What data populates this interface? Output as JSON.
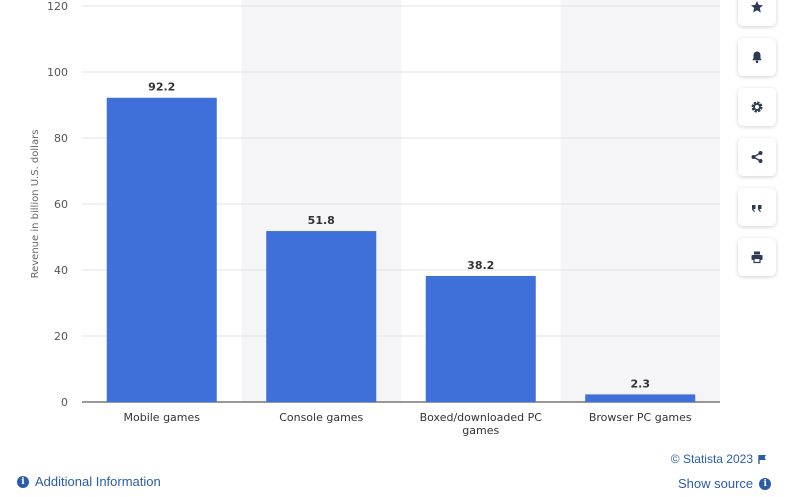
{
  "chart_data": {
    "type": "bar",
    "categories": [
      "Mobile games",
      "Console games",
      "Boxed/downloaded PC games",
      "Browser PC games"
    ],
    "values": [
      92.2,
      51.8,
      38.2,
      2.3
    ],
    "data_labels": [
      "92.2",
      "51.8",
      "38.2",
      "2.3"
    ],
    "ylabel": "Revenue in billion U.S. dollars",
    "ylim": [
      0,
      120
    ],
    "yticks": [
      0,
      20,
      40,
      60,
      80,
      100,
      120
    ],
    "grid": true,
    "bar_color": "#3f6fd8",
    "band_color": "#f5f5f7"
  },
  "toolbar": {
    "items": [
      {
        "name": "star-icon"
      },
      {
        "name": "bell-icon"
      },
      {
        "name": "gear-icon"
      },
      {
        "name": "share-icon"
      },
      {
        "name": "quote-icon"
      },
      {
        "name": "print-icon"
      }
    ]
  },
  "footer": {
    "additional_info": "Additional Information",
    "credit": "© Statista 2023",
    "show_source": "Show source"
  }
}
